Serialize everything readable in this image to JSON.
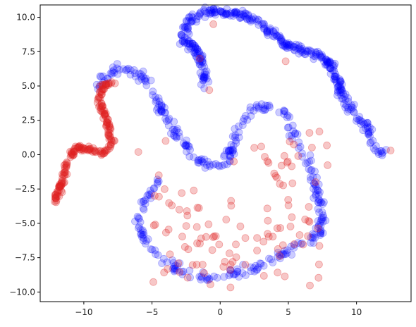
{
  "chart_data": {
    "type": "scatter",
    "title": "",
    "xlabel": "",
    "ylabel": "",
    "xlim": [
      -13.2,
      14.0
    ],
    "ylim": [
      -10.7,
      10.9
    ],
    "grid": false,
    "legend": "none",
    "x_ticks": [
      -10,
      -5,
      0,
      5,
      10
    ],
    "y_ticks": [
      -10.0,
      -7.5,
      -5.0,
      -2.5,
      0.0,
      2.5,
      5.0,
      7.5,
      10.0
    ],
    "x_tick_labels": [
      "−10",
      "−5",
      "0",
      "5",
      "10"
    ],
    "y_tick_labels": [
      "−10.0",
      "−7.5",
      "−5.0",
      "−2.5",
      "0.0",
      "2.5",
      "5.0",
      "7.5",
      "10.0"
    ],
    "series": [
      {
        "color": "#0000ff",
        "opacity": 0.2,
        "curves": [
          [
            [
              -1.0,
              5.0
            ],
            [
              -1.3,
              6.5
            ],
            [
              -1.8,
              7.8
            ],
            [
              -2.8,
              8.4
            ],
            [
              -2.3,
              9.8
            ],
            [
              -1.3,
              10.3
            ],
            [
              0.0,
              10.4
            ],
            [
              2.0,
              10.1
            ],
            [
              3.5,
              9.1
            ],
            [
              4.8,
              8.0
            ],
            [
              6.0,
              7.6
            ],
            [
              7.2,
              7.3
            ],
            [
              8.2,
              6.4
            ],
            [
              8.7,
              5.0
            ],
            [
              9.2,
              3.6
            ],
            [
              10.0,
              2.8
            ],
            [
              10.8,
              2.0
            ],
            [
              11.2,
              0.8
            ],
            [
              11.6,
              0.2
            ],
            [
              12.2,
              0.0
            ]
          ],
          [
            [
              -9.0,
              4.8
            ],
            [
              -8.5,
              5.5
            ],
            [
              -7.5,
              6.2
            ],
            [
              -6.3,
              6.1
            ],
            [
              -5.5,
              5.4
            ],
            [
              -4.8,
              4.3
            ],
            [
              -4.0,
              2.8
            ],
            [
              -3.0,
              1.2
            ],
            [
              -2.0,
              0.0
            ],
            [
              -0.8,
              -0.8
            ],
            [
              0.2,
              -0.7
            ],
            [
              0.8,
              0.2
            ],
            [
              1.3,
              1.8
            ],
            [
              2.2,
              3.2
            ],
            [
              3.5,
              3.5
            ],
            [
              5.0,
              3.0
            ],
            [
              5.5,
              1.5
            ],
            [
              6.2,
              0.0
            ],
            [
              6.8,
              -1.5
            ],
            [
              7.2,
              -3.0
            ],
            [
              7.6,
              -4.5
            ],
            [
              7.2,
              -5.8
            ],
            [
              6.0,
              -6.5
            ],
            [
              4.5,
              -7.2
            ],
            [
              3.2,
              -8.0
            ],
            [
              2.0,
              -8.4
            ],
            [
              0.5,
              -8.8
            ],
            [
              -1.0,
              -9.0
            ],
            [
              -2.5,
              -8.5
            ],
            [
              -4.0,
              -7.8
            ],
            [
              -5.2,
              -6.8
            ],
            [
              -6.0,
              -5.5
            ],
            [
              -6.0,
              -4.2
            ],
            [
              -5.2,
              -3.0
            ],
            [
              -4.5,
              -1.5
            ]
          ]
        ],
        "count": 760,
        "spread": 0.16
      },
      {
        "color": "#e02020",
        "opacity": 0.25,
        "curves": [
          [
            [
              -12.1,
              -3.4
            ],
            [
              -11.7,
              -2.3
            ],
            [
              -11.3,
              -0.8
            ],
            [
              -10.6,
              0.5
            ],
            [
              -9.5,
              0.4
            ],
            [
              -8.5,
              0.1
            ],
            [
              -7.9,
              0.8
            ],
            [
              -8.1,
              1.5
            ],
            [
              -8.3,
              2.5
            ],
            [
              -8.7,
              3.2
            ],
            [
              -8.9,
              4.1
            ],
            [
              -8.5,
              5.1
            ],
            [
              -7.8,
              5.2
            ]
          ]
        ],
        "count": 200,
        "spread": 0.1,
        "cloud": {
          "count": 110,
          "boxes": [
            [
              -5.0,
              1.5,
              -9.8,
              -2.5
            ],
            [
              -3.5,
              7.5,
              -9.8,
              -4.5
            ],
            [
              3.0,
              8.0,
              -7.0,
              2.5
            ]
          ]
        },
        "extra": [
          [
            4.8,
            6.8
          ],
          [
            -0.8,
            4.7
          ],
          [
            -1.5,
            7.0
          ],
          [
            -0.5,
            9.5
          ],
          [
            12.5,
            0.3
          ],
          [
            -4.5,
            -1.5
          ],
          [
            -4.0,
            1.0
          ],
          [
            1.0,
            -0.5
          ],
          [
            2.5,
            0.5
          ],
          [
            4.5,
            -0.8
          ],
          [
            -3.0,
            -4.0
          ],
          [
            -4.8,
            -3.0
          ],
          [
            7.0,
            -2.0
          ],
          [
            6.5,
            -3.8
          ],
          [
            -6.0,
            0.2
          ]
        ]
      }
    ]
  }
}
